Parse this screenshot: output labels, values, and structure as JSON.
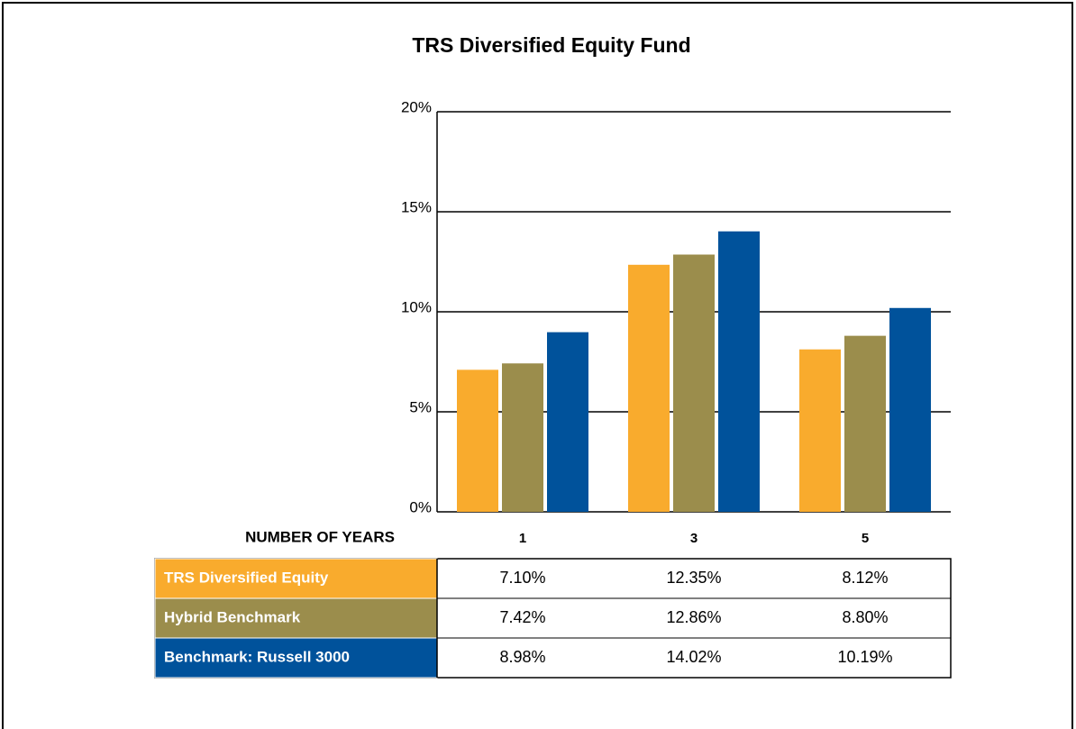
{
  "chart_data": {
    "type": "bar",
    "title": "TRS Diversified Equity Fund",
    "x_label": "NUMBER OF YEARS",
    "categories": [
      "1",
      "3",
      "5"
    ],
    "series": [
      {
        "name": "TRS Diversified Equity",
        "color": "#f9ab2d",
        "values": [
          7.1,
          12.35,
          8.12
        ],
        "value_labels": [
          "7.10%",
          "12.35%",
          "8.12%"
        ]
      },
      {
        "name": "Hybrid Benchmark",
        "color": "#9b8d4c",
        "values": [
          7.42,
          12.86,
          8.8
        ],
        "value_labels": [
          "7.42%",
          "12.86%",
          "8.80%"
        ]
      },
      {
        "name": "Benchmark: Russell 3000",
        "color": "#00529b",
        "values": [
          8.98,
          14.02,
          10.19
        ],
        "value_labels": [
          "8.98%",
          "14.02%",
          "10.19%"
        ]
      }
    ],
    "ylim": [
      0,
      20
    ],
    "yticks": [
      {
        "value": 0,
        "label": "0%"
      },
      {
        "value": 5,
        "label": "5%"
      },
      {
        "value": 10,
        "label": "10%"
      },
      {
        "value": 15,
        "label": "15%"
      },
      {
        "value": 20,
        "label": "20%"
      }
    ],
    "grid": true
  }
}
